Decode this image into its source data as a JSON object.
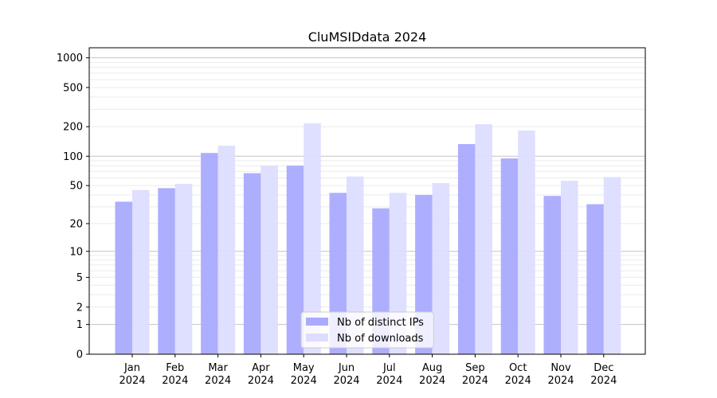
{
  "chart_data": {
    "type": "bar",
    "title": "CluMSIDdata 2024",
    "xlabel": "",
    "ylabel": "",
    "yscale": "log10(1+y)",
    "ylim": [
      0,
      1200
    ],
    "yticks": [
      0,
      1,
      2,
      5,
      10,
      20,
      50,
      100,
      200,
      500,
      1000
    ],
    "grid": "major and minor horizontal",
    "legend_position": "bottom-center",
    "categories": [
      "Jan\n2024",
      "Feb\n2024",
      "Mar\n2024",
      "Apr\n2024",
      "May\n2024",
      "Jun\n2024",
      "Jul\n2024",
      "Aug\n2024",
      "Sep\n2024",
      "Oct\n2024",
      "Nov\n2024",
      "Dec\n2024"
    ],
    "series": [
      {
        "name": "Nb of distinct IPs",
        "color": "#aaaaff",
        "values": [
          34,
          47,
          108,
          67,
          80,
          42,
          29,
          40,
          133,
          95,
          39,
          32
        ]
      },
      {
        "name": "Nb of downloads",
        "color": "#ddddff",
        "values": [
          45,
          52,
          128,
          80,
          216,
          62,
          42,
          53,
          212,
          183,
          56,
          61
        ]
      }
    ]
  }
}
